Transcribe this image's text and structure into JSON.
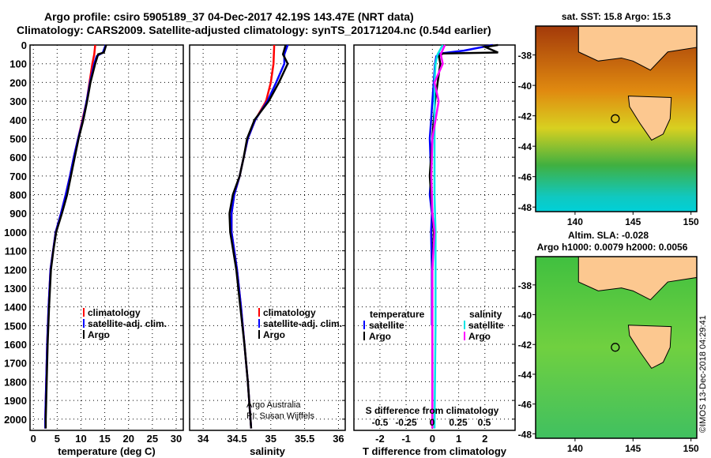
{
  "title_line1": "Argo profile: csiro 5905189_37 04-Dec-2017 42.19S 143.47E (NRT data)",
  "title_line2": "Climatology: CARS2009. Satellite-adjusted climatology: synTS_20171204.nc (0.54d earlier)",
  "credit": "Argo Australia",
  "pi": "PI: Susan Wijffels",
  "watermark": "©IMOS 13-Dec-2018 04:29:41",
  "colors": {
    "climatology": "#ff0000",
    "satellite": "#0000ff",
    "argo": "#000000",
    "sal_satellite": "#00e5e5",
    "sal_argo": "#ff00ff"
  },
  "chart_data": [
    {
      "type": "line",
      "xlabel": "temperature (deg C)",
      "xlim": [
        -0.7,
        31.5
      ],
      "ylim": [
        2060,
        0
      ],
      "xticks": [
        0,
        5,
        10,
        15,
        20,
        25,
        30
      ],
      "yticks": [
        0,
        100,
        200,
        300,
        400,
        500,
        600,
        700,
        800,
        900,
        1000,
        1100,
        1200,
        1300,
        1400,
        1500,
        1600,
        1700,
        1800,
        1900,
        2000
      ],
      "legend": [
        "climatology",
        "satellite-adj. clim.",
        "Argo"
      ],
      "series": [
        {
          "name": "climatology",
          "depth": [
            0,
            50,
            100,
            200,
            300,
            400,
            500,
            600,
            700,
            800,
            900,
            1000,
            1200,
            1400,
            1600,
            1800,
            2000,
            2050
          ],
          "values": [
            13,
            12.8,
            12.4,
            11.8,
            11.2,
            10.3,
            9.4,
            8.5,
            7.7,
            6.8,
            5.8,
            4.7,
            3.6,
            3.2,
            2.9,
            2.7,
            2.5,
            2.5
          ]
        },
        {
          "name": "satellite-adj. clim.",
          "depth": [
            0,
            40,
            60,
            100,
            200,
            300,
            400,
            500,
            600,
            700,
            800,
            900,
            1000,
            1200,
            1400,
            1600,
            1800,
            2000,
            2050
          ],
          "values": [
            15.2,
            14.6,
            13.3,
            12.8,
            11.9,
            11.2,
            10.4,
            9.4,
            8.5,
            7.7,
            6.8,
            5.8,
            4.7,
            3.6,
            3.2,
            2.9,
            2.7,
            2.5,
            2.5
          ]
        },
        {
          "name": "Argo",
          "depth": [
            0,
            40,
            50,
            100,
            200,
            300,
            400,
            500,
            600,
            700,
            800,
            900,
            1000,
            1100,
            1200,
            1400,
            1600,
            1800,
            2000,
            2050
          ],
          "values": [
            15.3,
            14.8,
            13.6,
            13,
            12,
            11.3,
            10.5,
            9.5,
            8.7,
            7.9,
            7.1,
            6,
            4.8,
            4.2,
            3.7,
            3.3,
            3,
            2.8,
            2.6,
            2.6
          ]
        }
      ]
    },
    {
      "type": "line",
      "xlabel": "salinity",
      "xlim": [
        33.8,
        36.1
      ],
      "ylim": [
        2060,
        0
      ],
      "xticks": [
        34,
        34.5,
        35,
        35.5,
        36
      ],
      "legend": [
        "climatology",
        "satellite-adj. clim.",
        "Argo"
      ],
      "series": [
        {
          "name": "climatology",
          "depth": [
            0,
            100,
            200,
            300,
            400,
            500,
            600,
            700,
            800,
            900,
            1000,
            1200,
            1400,
            1600,
            1800,
            2000,
            2050
          ],
          "values": [
            35.05,
            35.04,
            35.0,
            34.93,
            34.77,
            34.66,
            34.6,
            34.54,
            34.46,
            34.42,
            34.42,
            34.5,
            34.56,
            34.61,
            34.66,
            34.7,
            34.71
          ]
        },
        {
          "name": "satellite-adj. clim.",
          "depth": [
            0,
            50,
            100,
            200,
            300,
            400,
            500,
            600,
            700,
            800,
            900,
            1000,
            1200,
            1400,
            1600,
            1800,
            2000,
            2050
          ],
          "values": [
            35.25,
            35.2,
            35.2,
            35.08,
            34.95,
            34.77,
            34.66,
            34.6,
            34.54,
            34.46,
            34.42,
            34.42,
            34.5,
            34.56,
            34.61,
            34.66,
            34.7,
            34.71
          ]
        },
        {
          "name": "Argo",
          "depth": [
            0,
            50,
            100,
            200,
            300,
            400,
            500,
            600,
            700,
            800,
            900,
            1000,
            1200,
            1400,
            1600,
            1800,
            2000,
            2050
          ],
          "values": [
            35.22,
            35.18,
            35.25,
            35.12,
            34.97,
            34.76,
            34.65,
            34.6,
            34.54,
            34.44,
            34.39,
            34.4,
            34.49,
            34.55,
            34.61,
            34.66,
            34.7,
            34.71
          ]
        }
      ]
    },
    {
      "type": "line",
      "xlabel": "T difference from climatology",
      "x2label": "S difference from climatology",
      "xlim": [
        -2.99,
        3.15
      ],
      "ylim": [
        2060,
        0
      ],
      "xticks": [
        -2,
        -1,
        0,
        1,
        2
      ],
      "x2ticks": [
        -0.5,
        -0.25,
        0,
        0.25,
        0.5
      ],
      "legend_left_title": "temperature",
      "legend_left": [
        "satellite",
        "Argo"
      ],
      "legend_right_title": "salinity",
      "legend_right": [
        "satellite",
        "Argo"
      ],
      "series": [
        {
          "name": "T satellite",
          "depth": [
            0,
            30,
            45,
            60,
            100,
            200,
            300,
            400,
            500,
            700,
            800,
            900,
            1000,
            1200,
            1400,
            1500
          ],
          "values": [
            2.3,
            1.2,
            0.3,
            0.15,
            0.1,
            0.05,
            0.0,
            -0.05,
            -0.1,
            -0.05,
            -0.1,
            -0.02,
            -0.05,
            -0.02,
            -0.02,
            -0.02
          ]
        },
        {
          "name": "T Argo",
          "depth": [
            0,
            10,
            40,
            45,
            60,
            100,
            200,
            300,
            500,
            700,
            900,
            1000,
            1200,
            1500,
            2050
          ],
          "values": [
            2.5,
            2.0,
            2.5,
            0.4,
            0.25,
            0.3,
            0.2,
            0.1,
            0.0,
            -0.1,
            0.0,
            0.05,
            0.0,
            0.0,
            0.0
          ]
        },
        {
          "name": "S satellite",
          "depth": [
            0,
            50,
            100,
            200,
            300,
            500,
            800,
            1000,
            1500,
            2050
          ],
          "values": [
            0.1,
            0.05,
            0.03,
            0.02,
            0.02,
            0.02,
            0.02,
            0.03,
            0.03,
            0.02
          ]
        },
        {
          "name": "S Argo",
          "depth": [
            0,
            50,
            100,
            200,
            300,
            500,
            700,
            900,
            1000,
            1200,
            1600,
            2050
          ],
          "values": [
            0.12,
            0.08,
            0.1,
            0.02,
            0.06,
            0.0,
            -0.01,
            0.0,
            0.02,
            0.0,
            0.0,
            0.0
          ]
        }
      ]
    },
    {
      "type": "heatmap",
      "title": "sat. SST: 15.8 Argo: 15.3",
      "xticks": [
        140,
        145,
        150
      ],
      "yticks": [
        -38,
        -40,
        -42,
        -44,
        -46,
        -48
      ],
      "xlim": [
        136.6,
        150.5
      ],
      "ylim": [
        -48.3,
        -36.1
      ],
      "marker": [
        143.47,
        -42.19
      ]
    },
    {
      "type": "heatmap",
      "title": "Altim. SLA: -0.028",
      "subtitle": "Argo h1000: 0.0079 h2000: 0.0056",
      "xticks": [
        140,
        145,
        150
      ],
      "yticks": [
        -38,
        -40,
        -42,
        -44,
        -46,
        -48
      ],
      "xlim": [
        136.6,
        150.5
      ],
      "ylim": [
        -48.3,
        -36.1
      ],
      "marker": [
        143.47,
        -42.19
      ]
    }
  ]
}
